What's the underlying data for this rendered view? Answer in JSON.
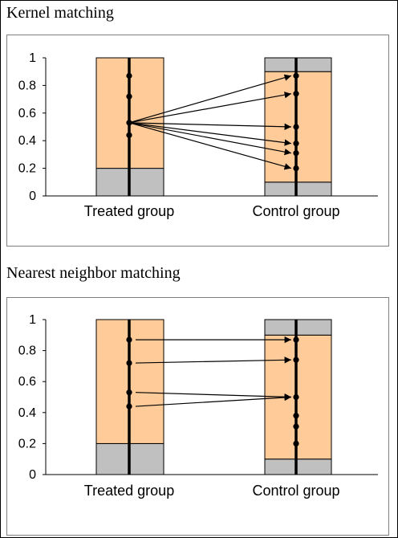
{
  "colors": {
    "unmatched": "#c0c0c0",
    "matched": "#ffcc99",
    "line": "#000000"
  },
  "panels": [
    {
      "title": "Kernel matching",
      "method": "kernel",
      "y_ticks": [
        "1",
        "0.8",
        "0.6",
        "0.4",
        "0.2",
        "0"
      ],
      "groups": [
        {
          "label": "Treated group",
          "matched_range": [
            0.2,
            1.0
          ],
          "points": [
            0.87,
            0.72,
            0.53,
            0.44
          ]
        },
        {
          "label": "Control group",
          "matched_range": [
            0.1,
            0.9
          ],
          "points": [
            0.87,
            0.74,
            0.5,
            0.38,
            0.31,
            0.2
          ]
        }
      ],
      "matches": [
        {
          "from": 0.53,
          "to": 0.87
        },
        {
          "from": 0.53,
          "to": 0.74
        },
        {
          "from": 0.53,
          "to": 0.5
        },
        {
          "from": 0.53,
          "to": 0.38
        },
        {
          "from": 0.53,
          "to": 0.31
        },
        {
          "from": 0.53,
          "to": 0.2
        }
      ]
    },
    {
      "title": "Nearest neighbor matching",
      "method": "nearest-neighbor",
      "y_ticks": [
        "1",
        "0.8",
        "0.6",
        "0.4",
        "0.2",
        "0"
      ],
      "groups": [
        {
          "label": "Treated group",
          "matched_range": [
            0.2,
            1.0
          ],
          "points": [
            0.87,
            0.72,
            0.53,
            0.44
          ]
        },
        {
          "label": "Control group",
          "matched_range": [
            0.1,
            0.9
          ],
          "points": [
            0.87,
            0.74,
            0.5,
            0.38,
            0.31,
            0.2
          ]
        }
      ],
      "matches": [
        {
          "from": 0.87,
          "to": 0.87
        },
        {
          "from": 0.72,
          "to": 0.74
        },
        {
          "from": 0.53,
          "to": 0.5
        },
        {
          "from": 0.44,
          "to": 0.5
        }
      ]
    }
  ]
}
